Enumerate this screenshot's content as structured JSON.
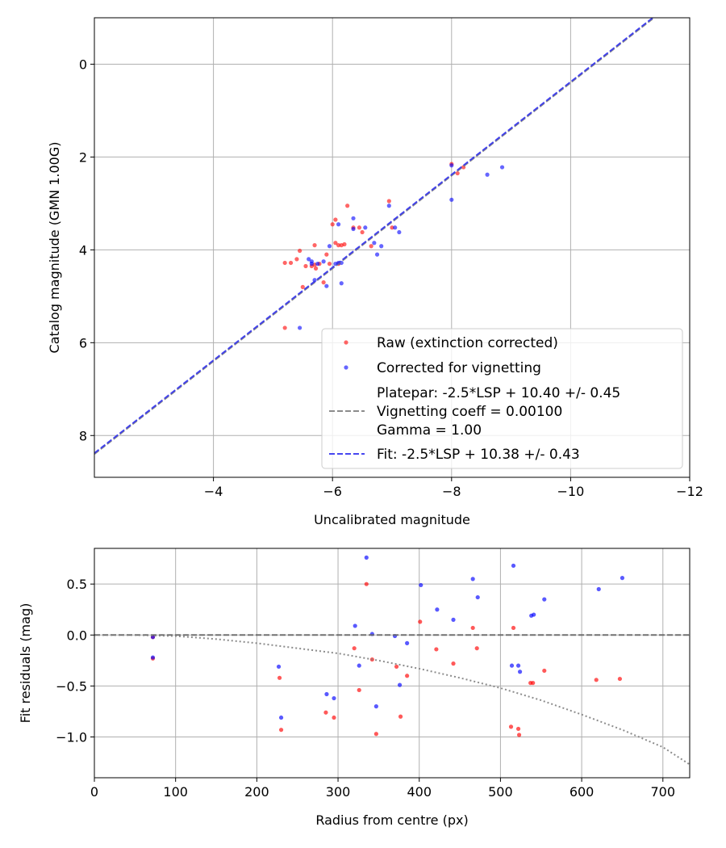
{
  "chart_data": [
    {
      "type": "scatter",
      "xlabel": "Uncalibrated magnitude",
      "ylabel": "Catalog magnitude (GMN 1.00G)",
      "xlim": [
        -2,
        -12
      ],
      "ylim": [
        8.9,
        -1.0
      ],
      "xticks": [
        -4,
        -6,
        -8,
        -10,
        -12
      ],
      "xtick_labels": [
        "−4",
        "−6",
        "−8",
        "−10",
        "−12"
      ],
      "yticks": [
        0,
        2,
        4,
        6,
        8
      ],
      "ytick_labels": [
        "0",
        "2",
        "4",
        "6",
        "8"
      ],
      "grid": true,
      "legend_position": "lower-right",
      "series": [
        {
          "name": "Raw (extinction corrected)",
          "kind": "scatter",
          "color": "#ff0000",
          "x": [
            -5.2,
            -5.3,
            -5.4,
            -5.5,
            -5.55,
            -5.65,
            -5.7,
            -5.7,
            -5.72,
            -5.78,
            -5.85,
            -5.9,
            -5.95,
            -6.0,
            -6.05,
            -6.05,
            -6.1,
            -6.1,
            -6.15,
            -6.2,
            -6.25,
            -6.35,
            -6.45,
            -6.5,
            -6.65,
            -6.95,
            -7.0,
            -5.45,
            -5.2,
            -8.0,
            -8.1,
            -8.2
          ],
          "y": [
            4.28,
            4.28,
            4.2,
            4.8,
            4.35,
            4.35,
            3.9,
            4.32,
            4.4,
            4.3,
            4.7,
            4.1,
            4.3,
            3.45,
            3.35,
            3.85,
            4.3,
            3.9,
            3.9,
            3.88,
            3.05,
            3.52,
            3.52,
            3.62,
            3.92,
            2.95,
            3.52,
            4.02,
            5.68,
            2.15,
            2.35,
            2.22
          ]
        },
        {
          "name": "Corrected for vignetting",
          "kind": "scatter",
          "color": "#0000ff",
          "x": [
            -5.45,
            -5.6,
            -5.65,
            -5.7,
            -5.75,
            -5.85,
            -5.9,
            -6.05,
            -6.1,
            -6.1,
            -6.15,
            -6.15,
            -6.35,
            -6.55,
            -6.7,
            -6.75,
            -6.82,
            -6.95,
            -7.05,
            -7.12,
            -5.65,
            -6.35,
            -8.0,
            -8.6,
            -8.85,
            -8.0,
            -5.95
          ],
          "y": [
            5.68,
            4.2,
            4.3,
            4.65,
            4.3,
            4.25,
            4.78,
            4.3,
            4.28,
            3.45,
            4.28,
            4.72,
            3.32,
            3.52,
            3.85,
            4.1,
            3.92,
            3.05,
            3.52,
            3.62,
            4.25,
            3.55,
            2.92,
            2.38,
            2.22,
            2.18,
            3.92
          ]
        },
        {
          "name": "Platepar: -2.5*LSP + 10.40 +/- 0.45\nVignetting coeff = 0.00100\nGamma = 1.00",
          "legend_lines": [
            "Platepar: -2.5*LSP + 10.40 +/- 0.45",
            "Vignetting coeff = 0.00100",
            "Gamma = 1.00"
          ],
          "kind": "line",
          "style": "dashed",
          "color": "#808080",
          "x": [
            -2,
            -12
          ],
          "y": [
            8.4,
            -1.6
          ]
        },
        {
          "name": "Fit: -2.5*LSP + 10.38 +/- 0.43",
          "kind": "line",
          "style": "dashed",
          "color": "#3333ee",
          "x": [
            -2,
            -12
          ],
          "y": [
            8.38,
            -1.62
          ]
        }
      ]
    },
    {
      "type": "scatter",
      "xlabel": "Radius from centre (px)",
      "ylabel": "Fit residuals (mag)",
      "xlim": [
        0,
        733
      ],
      "ylim": [
        -1.4,
        0.85
      ],
      "xticks": [
        0,
        100,
        200,
        300,
        400,
        500,
        600,
        700
      ],
      "xtick_labels": [
        "0",
        "100",
        "200",
        "300",
        "400",
        "500",
        "600",
        "700"
      ],
      "yticks": [
        0.5,
        0.0,
        -0.5,
        -1.0
      ],
      "ytick_labels": [
        "0.5",
        "0.0",
        "−0.5",
        "−1.0"
      ],
      "grid": true,
      "series": [
        {
          "name": "Raw residuals",
          "kind": "scatter",
          "color": "#ff0000",
          "x": [
            72,
            72,
            228,
            230,
            285,
            295,
            320,
            326,
            335,
            342,
            347,
            372,
            377,
            385,
            401,
            421,
            442,
            466,
            471,
            513,
            516,
            522,
            523,
            537,
            540,
            554,
            618,
            647
          ],
          "y": [
            -0.02,
            -0.23,
            -0.42,
            -0.93,
            -0.76,
            -0.81,
            -0.13,
            -0.54,
            0.5,
            -0.24,
            -0.97,
            -0.31,
            -0.8,
            -0.4,
            0.13,
            -0.14,
            -0.28,
            0.07,
            -0.13,
            -0.9,
            0.07,
            -0.92,
            -0.98,
            -0.47,
            -0.47,
            -0.35,
            -0.44,
            -0.43
          ]
        },
        {
          "name": "Vignetting-corrected residuals",
          "kind": "scatter",
          "color": "#0000ff",
          "x": [
            72,
            72,
            227,
            230,
            286,
            295,
            321,
            326,
            335,
            342,
            347,
            370,
            376,
            385,
            402,
            422,
            442,
            466,
            472,
            514,
            516,
            522,
            524,
            538,
            541,
            554,
            621,
            650
          ],
          "y": [
            -0.02,
            -0.22,
            -0.31,
            -0.81,
            -0.58,
            -0.62,
            0.09,
            -0.3,
            0.76,
            0.01,
            -0.7,
            -0.01,
            -0.49,
            -0.08,
            0.49,
            0.25,
            0.15,
            0.55,
            0.37,
            -0.3,
            0.68,
            -0.3,
            -0.36,
            0.19,
            0.2,
            0.35,
            0.45,
            0.56
          ]
        },
        {
          "name": "Zero line",
          "kind": "line",
          "style": "dashed",
          "color": "#666666",
          "x": [
            0,
            733
          ],
          "y": [
            0,
            0
          ]
        },
        {
          "name": "Vignetting model",
          "kind": "curve",
          "style": "dotted",
          "color": "#808080",
          "x": [
            0,
            50,
            100,
            150,
            200,
            250,
            300,
            350,
            400,
            450,
            500,
            550,
            600,
            650,
            700,
            733
          ],
          "y": [
            0,
            0,
            -0.01,
            -0.04,
            -0.08,
            -0.13,
            -0.18,
            -0.25,
            -0.33,
            -0.42,
            -0.52,
            -0.64,
            -0.78,
            -0.93,
            -1.1,
            -1.27
          ]
        }
      ]
    }
  ]
}
